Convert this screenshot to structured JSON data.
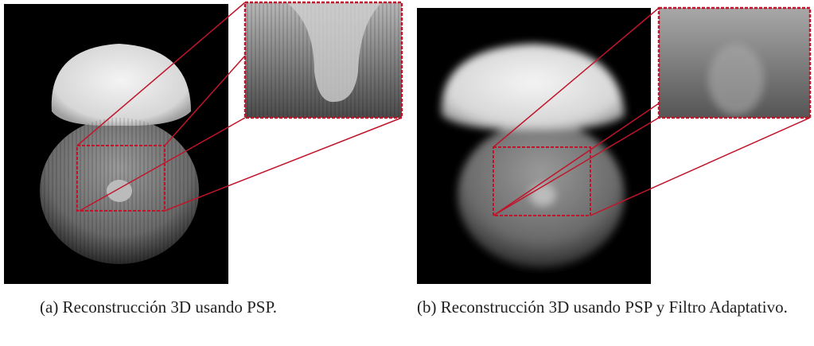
{
  "figures": [
    {
      "caption": "(a) Reconstrucción 3D usando PSP."
    },
    {
      "caption": "(b) Reconstrucción 3D usando PSP y Filtro Adaptativo."
    }
  ]
}
